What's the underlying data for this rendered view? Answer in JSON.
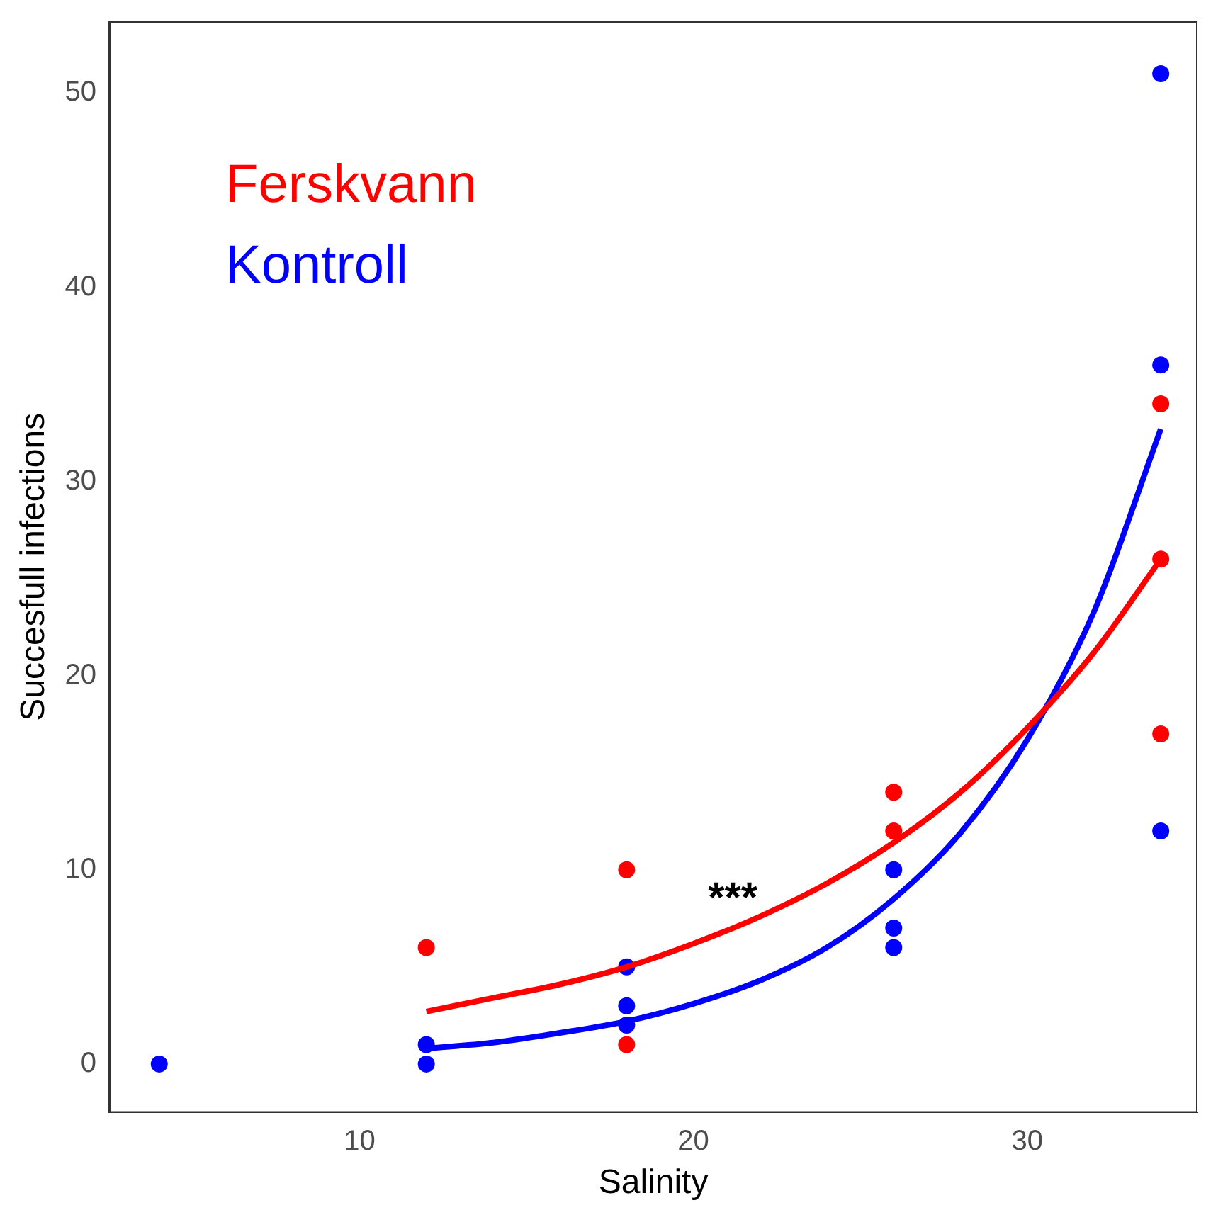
{
  "chart_data": {
    "type": "scatter",
    "xlabel": "Salinity",
    "ylabel": "Succesfull infections",
    "xlim": [
      2.5,
      35.1
    ],
    "xticks": [
      10,
      20,
      30
    ],
    "ylim": [
      -2.5,
      53.7
    ],
    "yticks": [
      0,
      10,
      20,
      30,
      40,
      50
    ],
    "grid": false,
    "legend": "top left",
    "marker": "circle",
    "series": [
      {
        "name": "Ferskvann",
        "color": "#ff0000",
        "x": [
          12,
          18,
          18,
          26,
          26,
          34,
          34,
          34
        ],
        "values": [
          6,
          10,
          1,
          14,
          12,
          34,
          26,
          17
        ]
      },
      {
        "name": "Kontroll",
        "color": "#0000ff",
        "x": [
          4,
          12,
          12,
          18,
          18,
          18,
          26,
          26,
          26,
          34,
          34,
          34
        ],
        "values": [
          0,
          1,
          0,
          5,
          3,
          2,
          10,
          7,
          6,
          51,
          36,
          12
        ]
      },
      {
        "type": "line",
        "color": "#ff0000",
        "marker": "none",
        "x": [
          12,
          14,
          16,
          18,
          20,
          22,
          24,
          26,
          28,
          30,
          32,
          34
        ],
        "values": [
          2.7,
          3.4,
          4.1,
          5.0,
          6.2,
          7.6,
          9.3,
          11.4,
          14.0,
          17.3,
          21.2,
          26
        ]
      },
      {
        "type": "line",
        "color": "#0000ff",
        "marker": "none",
        "x": [
          12,
          14,
          16,
          18,
          20,
          22,
          24,
          26,
          28,
          30,
          32,
          34
        ],
        "values": [
          0.8,
          1.1,
          1.6,
          2.2,
          3.1,
          4.3,
          6.0,
          8.5,
          11.9,
          16.7,
          23.3,
          32.7
        ]
      }
    ],
    "annotations": [
      "***"
    ]
  }
}
